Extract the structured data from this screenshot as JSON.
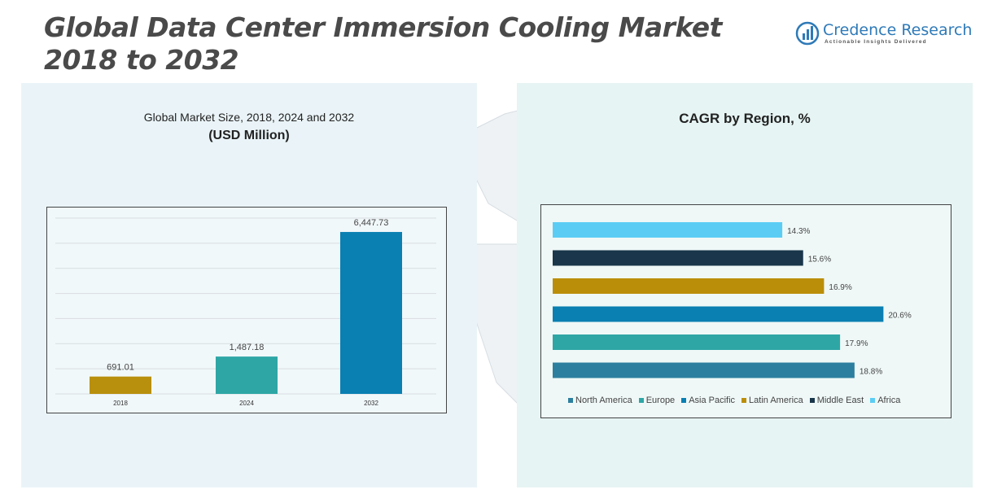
{
  "header": {
    "title_line1": "Global Data Center Immersion Cooling Market",
    "title_line2": "2018 to 2032",
    "logo_name": "Credence Research",
    "logo_tagline": "Actionable Insights Delivered"
  },
  "colors": {
    "title": "#4a4a4a",
    "brand": "#2e7ab8",
    "panel_left": "#eaf4f8",
    "panel_right": "#e6f4f3"
  },
  "chart_data": [
    {
      "type": "bar",
      "title": "Global Market Size, 2018, 2024 and 2032",
      "subtitle": "(USD Million)",
      "categories": [
        "2018",
        "2024",
        "2032"
      ],
      "values": [
        691.01,
        1487.18,
        6447.73
      ],
      "value_labels": [
        "691.01",
        "1,487.18",
        "6,447.73"
      ],
      "colors": [
        "#b8900e",
        "#2ea6a6",
        "#0a7fb2"
      ],
      "ylim": [
        0,
        7000
      ],
      "grid": true
    },
    {
      "type": "bar",
      "orientation": "horizontal",
      "title": "CAGR by Region, %",
      "categories": [
        "Africa",
        "Middle East",
        "Latin America",
        "Asia Pacific",
        "Europe",
        "North America"
      ],
      "values": [
        14.3,
        15.6,
        16.9,
        20.6,
        17.9,
        18.8
      ],
      "value_labels": [
        "14.3%",
        "15.6%",
        "16.9%",
        "20.6%",
        "17.9%",
        "18.8%"
      ],
      "colors": [
        "#5bcdf5",
        "#19364a",
        "#bb8e09",
        "#0a7fb2",
        "#2ea6a6",
        "#2d7f9f"
      ],
      "xlim": [
        0,
        22
      ],
      "legend": {
        "position": "bottom",
        "items": [
          {
            "label": "North America",
            "color": "#2d7f9f"
          },
          {
            "label": "Europe",
            "color": "#2ea6a6"
          },
          {
            "label": "Asia Pacific",
            "color": "#0a7fb2"
          },
          {
            "label": "Latin America",
            "color": "#bb8e09"
          },
          {
            "label": "Middle East",
            "color": "#19364a"
          },
          {
            "label": "Africa",
            "color": "#5bcdf5"
          }
        ]
      }
    }
  ]
}
